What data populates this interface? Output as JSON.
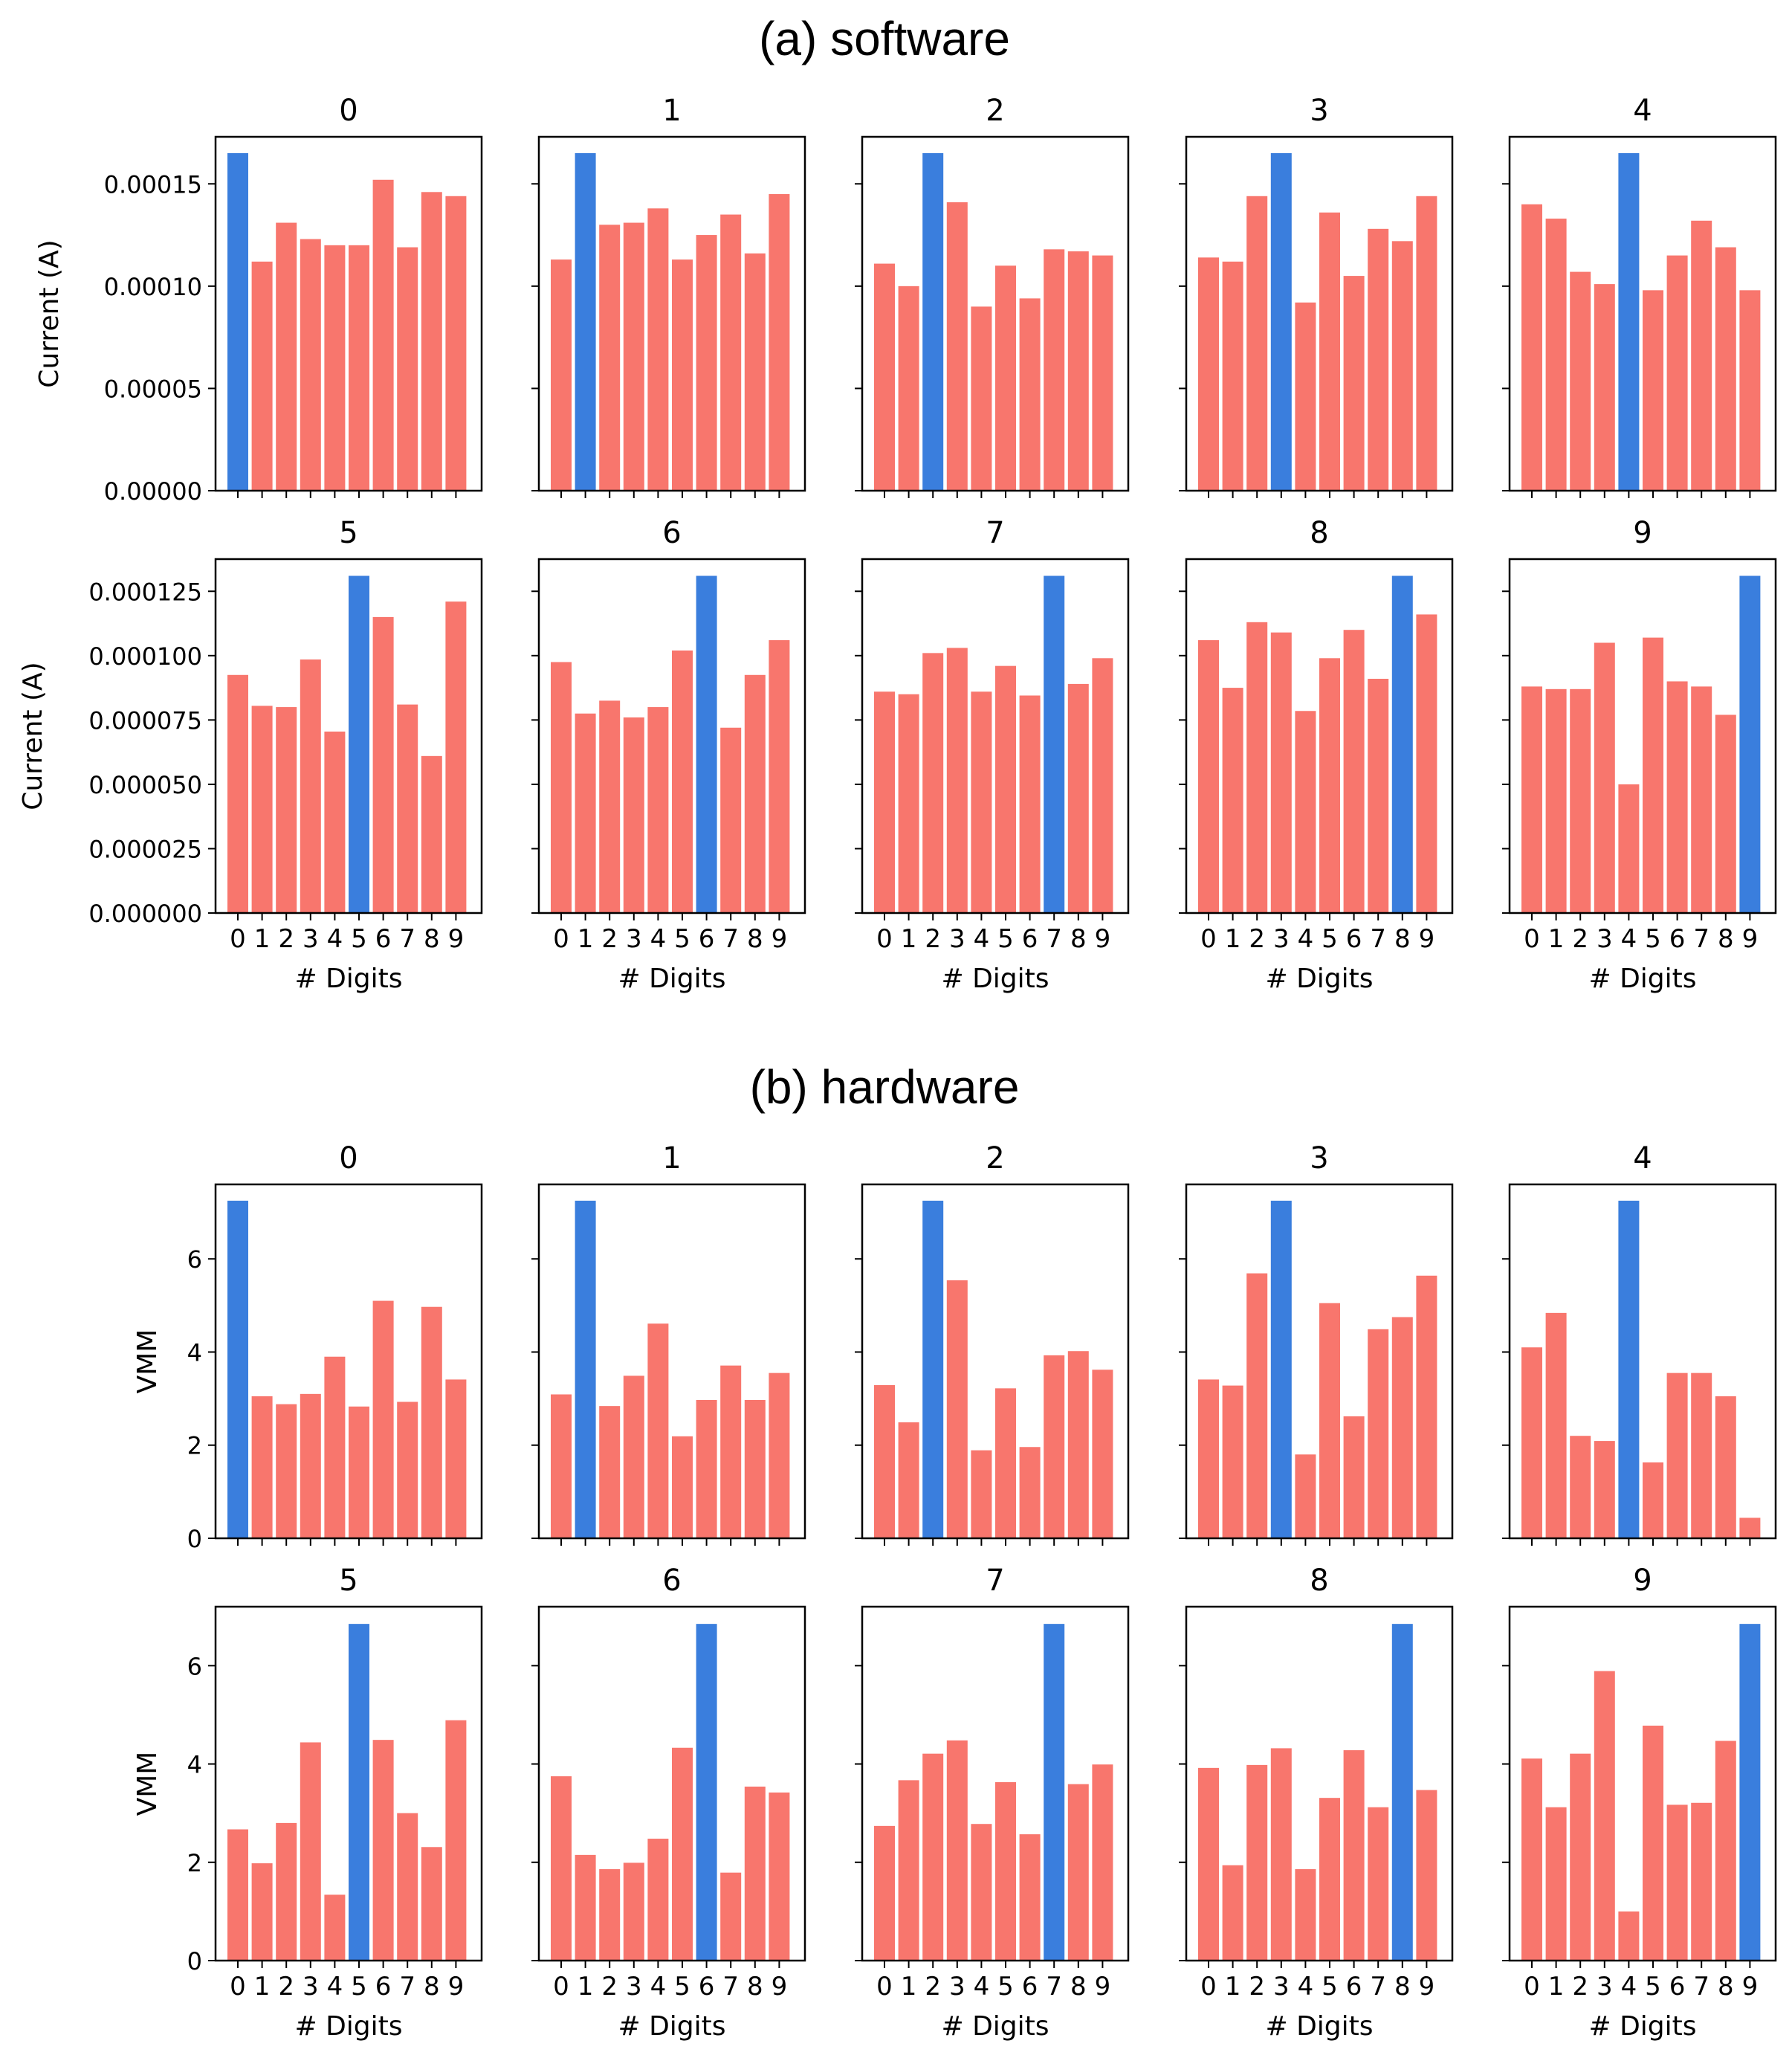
{
  "colors": {
    "highlight": "#3a7edd",
    "other": "#f8766d",
    "axis": "#000000"
  },
  "sections": [
    {
      "title": "(a) software"
    },
    {
      "title": "(b) hardware"
    }
  ],
  "chart_data": [
    {
      "section": "(a) software",
      "type": "bar",
      "layout_rows": 2,
      "layout_cols": 5,
      "categories": [
        "0",
        "1",
        "2",
        "3",
        "4",
        "5",
        "6",
        "7",
        "8",
        "9"
      ],
      "xlabel": "# Digits",
      "row_ylabels": [
        "Current (A)",
        "Current (A)"
      ],
      "row_yticks": [
        [
          "0.00000",
          "0.00005",
          "0.00010",
          "0.00015"
        ],
        [
          "0.000000",
          "0.000025",
          "0.000050",
          "0.000075",
          "0.000100",
          "0.000125"
        ]
      ],
      "row_ylim": [
        [
          0,
          0.000173
        ],
        [
          0,
          0.0001375
        ]
      ],
      "panels": [
        {
          "title": "0",
          "highlight": 0,
          "values": [
            0.000165,
            0.000112,
            0.000131,
            0.000123,
            0.00012,
            0.00012,
            0.000152,
            0.000119,
            0.000146,
            0.000144
          ]
        },
        {
          "title": "1",
          "highlight": 1,
          "values": [
            0.000113,
            0.000165,
            0.00013,
            0.000131,
            0.000138,
            0.000113,
            0.000125,
            0.000135,
            0.000116,
            0.000145
          ]
        },
        {
          "title": "2",
          "highlight": 2,
          "values": [
            0.000111,
            0.0001,
            0.000165,
            0.000141,
            9e-05,
            0.00011,
            9.4e-05,
            0.000118,
            0.000117,
            0.000115
          ]
        },
        {
          "title": "3",
          "highlight": 3,
          "values": [
            0.000114,
            0.000112,
            0.000144,
            0.000165,
            9.2e-05,
            0.000136,
            0.000105,
            0.000128,
            0.000122,
            0.000144
          ]
        },
        {
          "title": "4",
          "highlight": 4,
          "values": [
            0.00014,
            0.000133,
            0.000107,
            0.000101,
            0.000165,
            9.8e-05,
            0.000115,
            0.000132,
            0.000119,
            9.8e-05
          ]
        },
        {
          "title": "5",
          "highlight": 5,
          "values": [
            9.25e-05,
            8.05e-05,
            8e-05,
            9.85e-05,
            7.05e-05,
            0.000131,
            0.000115,
            8.1e-05,
            6.1e-05,
            0.000121
          ]
        },
        {
          "title": "6",
          "highlight": 6,
          "values": [
            9.75e-05,
            7.75e-05,
            8.25e-05,
            7.6e-05,
            8e-05,
            0.000102,
            0.000131,
            7.2e-05,
            9.25e-05,
            0.000106
          ]
        },
        {
          "title": "7",
          "highlight": 7,
          "values": [
            8.6e-05,
            8.5e-05,
            0.000101,
            0.000103,
            8.6e-05,
            9.6e-05,
            8.45e-05,
            0.000131,
            8.9e-05,
            9.9e-05
          ]
        },
        {
          "title": "8",
          "highlight": 8,
          "values": [
            0.000106,
            8.75e-05,
            0.000113,
            0.000109,
            7.85e-05,
            9.9e-05,
            0.00011,
            9.1e-05,
            0.000131,
            0.000116
          ]
        },
        {
          "title": "9",
          "highlight": 9,
          "values": [
            8.8e-05,
            8.7e-05,
            8.7e-05,
            0.000105,
            5e-05,
            0.000107,
            9e-05,
            8.8e-05,
            7.7e-05,
            0.000131
          ]
        }
      ]
    },
    {
      "section": "(b) hardware",
      "type": "bar",
      "layout_rows": 2,
      "layout_cols": 5,
      "categories": [
        "0",
        "1",
        "2",
        "3",
        "4",
        "5",
        "6",
        "7",
        "8",
        "9"
      ],
      "xlabel": "# Digits",
      "row_ylabels": [
        "VMM",
        "VMM"
      ],
      "row_yticks": [
        [
          "0",
          "2",
          "4",
          "6"
        ],
        [
          "0",
          "2",
          "4",
          "6"
        ]
      ],
      "row_ylim": [
        [
          0,
          7.6
        ],
        [
          0,
          7.2
        ]
      ],
      "panels": [
        {
          "title": "0",
          "highlight": 0,
          "values": [
            7.25,
            3.05,
            2.88,
            3.1,
            3.9,
            2.83,
            5.1,
            2.93,
            4.97,
            3.41
          ]
        },
        {
          "title": "1",
          "highlight": 1,
          "values": [
            3.09,
            7.25,
            2.84,
            3.49,
            4.61,
            2.19,
            2.97,
            3.71,
            2.97,
            3.55
          ]
        },
        {
          "title": "2",
          "highlight": 2,
          "values": [
            3.29,
            2.49,
            7.25,
            5.54,
            1.89,
            3.22,
            1.96,
            3.93,
            4.02,
            3.62
          ]
        },
        {
          "title": "3",
          "highlight": 3,
          "values": [
            3.41,
            3.28,
            5.69,
            7.25,
            1.8,
            5.05,
            2.62,
            4.49,
            4.75,
            5.64
          ]
        },
        {
          "title": "4",
          "highlight": 4,
          "values": [
            4.1,
            4.84,
            2.2,
            2.09,
            7.25,
            1.63,
            3.55,
            3.55,
            3.05,
            0.44
          ]
        },
        {
          "title": "5",
          "highlight": 5,
          "values": [
            2.67,
            1.98,
            2.8,
            4.44,
            1.34,
            6.85,
            4.49,
            3.0,
            2.31,
            4.89
          ]
        },
        {
          "title": "6",
          "highlight": 6,
          "values": [
            3.75,
            2.15,
            1.86,
            1.99,
            2.48,
            4.33,
            6.85,
            1.79,
            3.54,
            3.42
          ]
        },
        {
          "title": "7",
          "highlight": 7,
          "values": [
            2.74,
            3.67,
            4.21,
            4.48,
            2.78,
            3.63,
            2.57,
            6.85,
            3.59,
            3.99
          ]
        },
        {
          "title": "8",
          "highlight": 8,
          "values": [
            3.92,
            1.94,
            3.98,
            4.32,
            1.86,
            3.31,
            4.28,
            3.12,
            6.85,
            3.47
          ]
        },
        {
          "title": "9",
          "highlight": 9,
          "values": [
            4.11,
            3.12,
            4.21,
            5.89,
            1.0,
            4.78,
            3.17,
            3.21,
            4.47,
            6.85
          ]
        }
      ]
    }
  ]
}
